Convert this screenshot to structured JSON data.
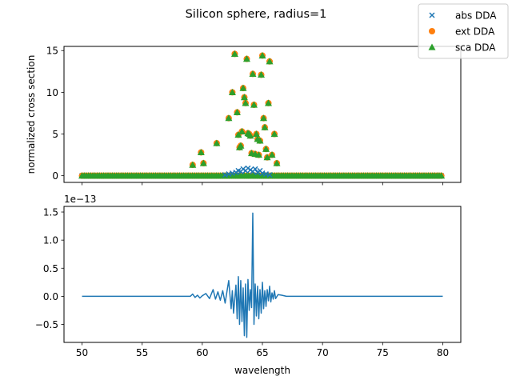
{
  "figure": {
    "title": "Silicon sphere, radius=1",
    "legend": [
      {
        "label": "abs DDA",
        "marker": "x",
        "color": "#1f77b4"
      },
      {
        "label": "ext DDA",
        "marker": "circle",
        "color": "#ff7f0e"
      },
      {
        "label": "sca DDA",
        "marker": "triangle",
        "color": "#2ca02c"
      }
    ],
    "legend_placement": "top-right (figure)"
  },
  "chart_data": [
    {
      "type": "scatter",
      "title": "",
      "xlabel": "",
      "ylabel": "normalized cross section",
      "xlim": [
        48.5,
        81.5
      ],
      "ylim": [
        -0.8,
        15.5
      ],
      "yticks": [
        0,
        5,
        10,
        15
      ],
      "xticks": [
        50,
        55,
        60,
        65,
        70,
        75,
        80
      ],
      "x_ticklabels_shown": false,
      "grid": false,
      "baseline_x_range": [
        50,
        80
      ],
      "series": [
        {
          "name": "abs DDA",
          "marker": "x",
          "color": "#1f77b4",
          "x": [
            61.9,
            62.2,
            62.5,
            62.8,
            63.0,
            63.2,
            63.4,
            63.6,
            63.8,
            64.0,
            64.2,
            64.4,
            64.6,
            64.8,
            65.0,
            65.3,
            65.6
          ],
          "y": [
            0.1,
            0.2,
            0.3,
            0.4,
            0.6,
            0.5,
            0.8,
            0.6,
            0.9,
            0.7,
            0.5,
            0.8,
            0.4,
            0.6,
            0.3,
            0.2,
            0.1
          ]
        },
        {
          "name": "ext DDA",
          "marker": "o",
          "color": "#ff7f0e",
          "x": [
            59.2,
            59.9,
            60.1,
            61.2,
            62.2,
            62.5,
            62.7,
            62.9,
            63.0,
            63.1,
            63.2,
            63.3,
            63.4,
            63.5,
            63.6,
            63.7,
            63.8,
            63.9,
            64.0,
            64.1,
            64.2,
            64.3,
            64.4,
            64.5,
            64.6,
            64.7,
            64.8,
            64.9,
            65.0,
            65.1,
            65.2,
            65.3,
            65.4,
            65.5,
            65.6,
            65.8,
            66.0,
            66.2
          ],
          "y": [
            1.3,
            2.8,
            1.5,
            3.9,
            6.9,
            10.0,
            14.6,
            7.6,
            4.9,
            3.4,
            3.6,
            5.3,
            10.5,
            9.4,
            8.7,
            14.0,
            5.1,
            5.0,
            4.8,
            2.7,
            12.2,
            8.5,
            2.6,
            5.0,
            4.4,
            2.5,
            4.2,
            12.1,
            14.4,
            6.9,
            5.8,
            3.2,
            2.2,
            8.7,
            13.7,
            2.5,
            5.0,
            1.5
          ]
        },
        {
          "name": "sca DDA",
          "marker": "^",
          "color": "#2ca02c",
          "x": [
            59.2,
            59.9,
            60.1,
            61.2,
            62.2,
            62.5,
            62.7,
            62.9,
            63.0,
            63.1,
            63.2,
            63.3,
            63.4,
            63.5,
            63.6,
            63.7,
            63.8,
            63.9,
            64.0,
            64.1,
            64.2,
            64.3,
            64.4,
            64.5,
            64.6,
            64.7,
            64.8,
            64.9,
            65.0,
            65.1,
            65.2,
            65.3,
            65.4,
            65.5,
            65.6,
            65.8,
            66.0,
            66.2
          ],
          "y": [
            1.3,
            2.8,
            1.5,
            3.9,
            6.9,
            10.0,
            14.6,
            7.6,
            4.9,
            3.4,
            3.6,
            5.3,
            10.5,
            9.4,
            8.7,
            14.0,
            5.1,
            5.0,
            4.8,
            2.7,
            12.2,
            8.5,
            2.6,
            5.0,
            4.4,
            2.5,
            4.2,
            12.1,
            14.4,
            6.9,
            5.8,
            3.2,
            2.2,
            8.7,
            13.7,
            2.5,
            5.0,
            1.5
          ]
        }
      ]
    },
    {
      "type": "line",
      "title": "",
      "xlabel": "wavelength",
      "ylabel": "",
      "offset_text": "1e−13",
      "xlim": [
        48.5,
        81.5
      ],
      "ylim": [
        -0.82,
        1.6
      ],
      "yticks": [
        -0.5,
        0.0,
        0.5,
        1.0,
        1.5
      ],
      "ytick_labels": [
        "−0.5",
        "0.0",
        "0.5",
        "1.0",
        "1.5"
      ],
      "xticks": [
        50,
        55,
        60,
        65,
        70,
        75,
        80
      ],
      "grid": false,
      "series": [
        {
          "color": "#1f77b4",
          "x": [
            50,
            59.0,
            59.2,
            59.4,
            59.6,
            59.8,
            60.0,
            60.3,
            60.6,
            60.9,
            61.1,
            61.3,
            61.5,
            61.7,
            61.9,
            62.1,
            62.2,
            62.4,
            62.5,
            62.6,
            62.8,
            62.9,
            63.0,
            63.1,
            63.2,
            63.3,
            63.4,
            63.5,
            63.6,
            63.7,
            63.8,
            63.9,
            64.0,
            64.1,
            64.2,
            64.3,
            64.4,
            64.5,
            64.6,
            64.7,
            64.8,
            64.9,
            65.0,
            65.1,
            65.2,
            65.3,
            65.4,
            65.5,
            65.6,
            65.7,
            65.8,
            65.9,
            66.0,
            66.1,
            66.3,
            66.6,
            67.0,
            80
          ],
          "y": [
            0.0,
            0.0,
            0.04,
            -0.02,
            0.02,
            -0.03,
            0.01,
            0.05,
            -0.04,
            0.12,
            -0.05,
            0.08,
            -0.07,
            0.1,
            -0.12,
            0.15,
            0.28,
            -0.22,
            0.1,
            -0.3,
            0.2,
            -0.4,
            0.35,
            -0.5,
            0.28,
            -0.45,
            0.15,
            -0.7,
            0.22,
            -0.73,
            0.3,
            -0.25,
            0.12,
            -0.2,
            1.48,
            -0.5,
            0.22,
            -0.35,
            0.18,
            -0.4,
            0.12,
            -0.3,
            0.25,
            -0.22,
            0.1,
            -0.18,
            0.12,
            -0.08,
            0.18,
            -0.1,
            0.06,
            -0.05,
            0.1,
            -0.04,
            0.03,
            0.02,
            0.0,
            0.0
          ]
        }
      ]
    }
  ]
}
